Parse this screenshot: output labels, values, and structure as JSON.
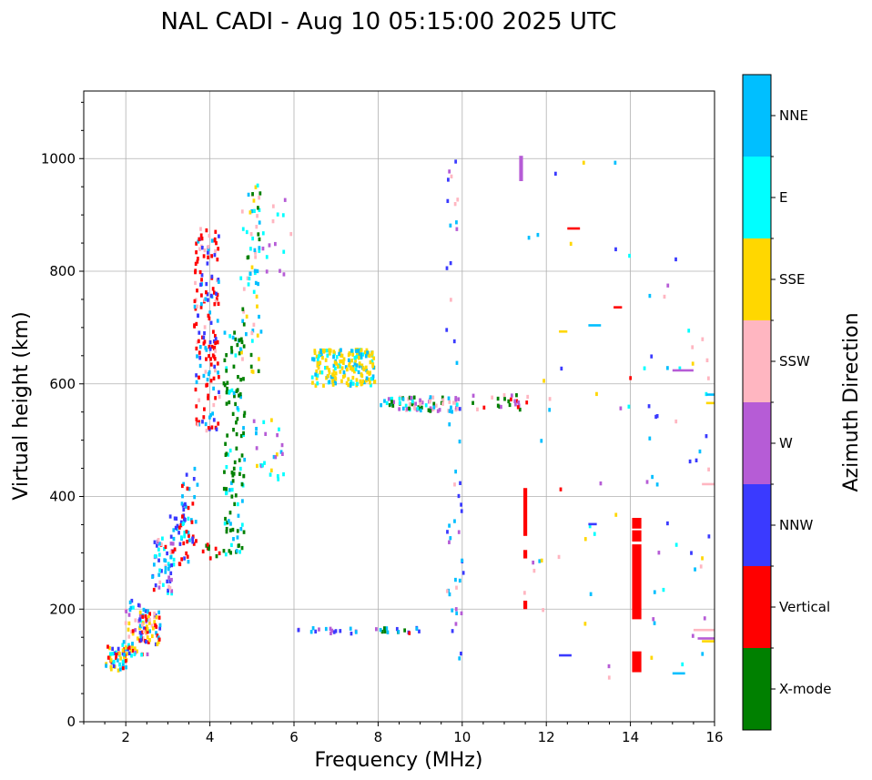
{
  "chart_data": {
    "type": "scatter",
    "title": "NAL CADI - Aug 10 05:15:00 2025 UTC",
    "xlabel": "Frequency (MHz)",
    "ylabel": "Virtual height (km)",
    "xlim": [
      1,
      16
    ],
    "ylim": [
      0,
      1120
    ],
    "xticks": [
      2,
      4,
      6,
      8,
      10,
      12,
      14,
      16
    ],
    "yticks": [
      0,
      200,
      400,
      600,
      800,
      1000
    ],
    "grid": true,
    "colorbar": {
      "title": "Azimuth Direction",
      "position": "right",
      "categories": [
        {
          "name": "X-mode",
          "color": "#008000"
        },
        {
          "name": "Vertical",
          "color": "#ff0000"
        },
        {
          "name": "NNW",
          "color": "#3a3aff"
        },
        {
          "name": "W",
          "color": "#b65cd6"
        },
        {
          "name": "SSW",
          "color": "#ffb6c1"
        },
        {
          "name": "SSE",
          "color": "#ffd700"
        },
        {
          "name": "E",
          "color": "#00ffff"
        },
        {
          "name": "NNE",
          "color": "#00bfff"
        }
      ]
    },
    "cell_size": {
      "dfreq": 0.06,
      "dheight": 7
    },
    "blobs": [
      {
        "f": [
          1.5,
          2.0
        ],
        "h": [
          90,
          140
        ],
        "n": 50,
        "c": [
          "Vertical",
          "NNW",
          "E",
          "NNE",
          "SSE",
          "Vertical"
        ]
      },
      {
        "f": [
          1.9,
          2.5
        ],
        "h": [
          120,
          220
        ],
        "n": 70,
        "c": [
          "Vertical",
          "NNW",
          "W",
          "SSW",
          "E",
          "NNE",
          "SSE"
        ]
      },
      {
        "f": [
          2.3,
          2.8
        ],
        "h": [
          140,
          200
        ],
        "n": 50,
        "c": [
          "Vertical",
          "NNW",
          "SSE",
          "SSW",
          "NNE"
        ]
      },
      {
        "f": [
          2.6,
          3.1
        ],
        "h": [
          230,
          330
        ],
        "n": 55,
        "c": [
          "Vertical",
          "NNW",
          "NNE",
          "SSW",
          "W",
          "E"
        ]
      },
      {
        "f": [
          3.0,
          3.5
        ],
        "h": [
          280,
          380
        ],
        "n": 35,
        "c": [
          "NNW",
          "NNE",
          "Vertical",
          "E"
        ]
      },
      {
        "f": [
          3.3,
          3.7
        ],
        "h": [
          290,
          460
        ],
        "n": 35,
        "c": [
          "Vertical",
          "NNW",
          "NNE"
        ]
      },
      {
        "f": [
          3.6,
          4.2
        ],
        "h": [
          520,
          880
        ],
        "n": 170,
        "c": [
          "Vertical",
          "Vertical",
          "Vertical",
          "NNW",
          "SSW",
          "NNE"
        ]
      },
      {
        "f": [
          3.8,
          4.2
        ],
        "h": [
          280,
          320
        ],
        "n": 10,
        "c": [
          "X-mode",
          "Vertical"
        ]
      },
      {
        "f": [
          4.3,
          4.8
        ],
        "h": [
          300,
          700
        ],
        "n": 120,
        "c": [
          "X-mode",
          "X-mode",
          "X-mode",
          "NNE",
          "E"
        ]
      },
      {
        "f": [
          4.7,
          5.2
        ],
        "h": [
          620,
          960
        ],
        "n": 70,
        "c": [
          "X-mode",
          "E",
          "NNE",
          "SSE",
          "SSW"
        ]
      },
      {
        "f": [
          5.0,
          5.8
        ],
        "h": [
          430,
          540
        ],
        "n": 25,
        "c": [
          "E",
          "NNE",
          "SSE",
          "W"
        ]
      },
      {
        "f": [
          5.2,
          5.9
        ],
        "h": [
          790,
          940
        ],
        "n": 15,
        "c": [
          "SSW",
          "W",
          "E"
        ]
      },
      {
        "f": [
          6.4,
          7.9
        ],
        "h": [
          600,
          665
        ],
        "n": 200,
        "c": [
          "SSE",
          "SSE",
          "SSE",
          "E",
          "NNE"
        ]
      },
      {
        "f": [
          8.0,
          9.9
        ],
        "h": [
          555,
          580
        ],
        "n": 80,
        "c": [
          "X-mode",
          "NNE",
          "SSW",
          "W",
          "E"
        ]
      },
      {
        "f": [
          10.2,
          11.6
        ],
        "h": [
          555,
          585
        ],
        "n": 25,
        "c": [
          "Vertical",
          "X-mode",
          "SSW",
          "W"
        ]
      },
      {
        "f": [
          9.6,
          10.0
        ],
        "h": [
          80,
          1020
        ],
        "n": 50,
        "c": [
          "NNW",
          "W",
          "SSW",
          "NNE"
        ]
      },
      {
        "f": [
          6.0,
          8.2
        ],
        "h": [
          160,
          170
        ],
        "n": 18,
        "c": [
          "NNW",
          "NNE",
          "W"
        ]
      },
      {
        "f": [
          8.0,
          9.0
        ],
        "h": [
          160,
          170
        ],
        "n": 15,
        "c": [
          "NNW",
          "Vertical",
          "X-mode",
          "NNE"
        ]
      },
      {
        "f": [
          14.3,
          15.9
        ],
        "h": [
          80,
          900
        ],
        "n": 45,
        "c": [
          "SSE",
          "NNE",
          "W",
          "SSW",
          "E",
          "NNW"
        ]
      },
      {
        "f": [
          12.0,
          14.0
        ],
        "h": [
          80,
          1000
        ],
        "n": 22,
        "c": [
          "SSE",
          "SSW",
          "W",
          "NNE",
          "NNW",
          "E",
          "Vertical"
        ]
      },
      {
        "f": [
          11.4,
          12.1
        ],
        "h": [
          100,
          870
        ],
        "n": 12,
        "c": [
          "SSW",
          "W",
          "SSE",
          "NNE"
        ]
      }
    ],
    "columns": [
      {
        "f": 11.5,
        "h": [
          330,
          415
        ],
        "c": "Vertical"
      },
      {
        "f": 11.5,
        "h": [
          290,
          305
        ],
        "c": "Vertical"
      },
      {
        "f": 11.5,
        "h": [
          200,
          215
        ],
        "c": "Vertical"
      },
      {
        "f": 11.4,
        "h": [
          960,
          1005
        ],
        "c": "W"
      },
      {
        "f": 14.15,
        "h": [
          182,
          315
        ],
        "c": "Vertical",
        "w": 0.22
      },
      {
        "f": 14.15,
        "h": [
          320,
          340
        ],
        "c": "Vertical",
        "w": 0.22
      },
      {
        "f": 14.15,
        "h": [
          343,
          362
        ],
        "c": "Vertical",
        "w": 0.22
      },
      {
        "f": 14.15,
        "h": [
          88,
          125
        ],
        "c": "Vertical",
        "w": 0.22
      }
    ],
    "segments": [
      {
        "f": [
          15.0,
          15.5
        ],
        "h": 626,
        "c": "W"
      },
      {
        "f": [
          15.8,
          16.0
        ],
        "h": 568,
        "c": "SSE"
      },
      {
        "f": [
          15.8,
          16.0
        ],
        "h": 583,
        "c": "NNE"
      },
      {
        "f": [
          15.7,
          16.0
        ],
        "h": 424,
        "c": "SSW"
      },
      {
        "f": [
          15.5,
          16.0
        ],
        "h": 165,
        "c": "SSW"
      },
      {
        "f": [
          15.6,
          16.0
        ],
        "h": 150,
        "c": "W"
      },
      {
        "f": [
          15.7,
          16.0
        ],
        "h": 145,
        "c": "SSE"
      },
      {
        "f": [
          15.0,
          15.3
        ],
        "h": 88,
        "c": "NNE"
      },
      {
        "f": [
          12.5,
          12.8
        ],
        "h": 878,
        "c": "Vertical"
      },
      {
        "f": [
          13.0,
          13.3
        ],
        "h": 706,
        "c": "NNE"
      },
      {
        "f": [
          13.6,
          13.8
        ],
        "h": 738,
        "c": "Vertical"
      },
      {
        "f": [
          12.3,
          12.5
        ],
        "h": 695,
        "c": "SSE"
      },
      {
        "f": [
          13.0,
          13.2
        ],
        "h": 353,
        "c": "NNW"
      },
      {
        "f": [
          12.3,
          12.6
        ],
        "h": 120,
        "c": "NNW"
      }
    ]
  }
}
